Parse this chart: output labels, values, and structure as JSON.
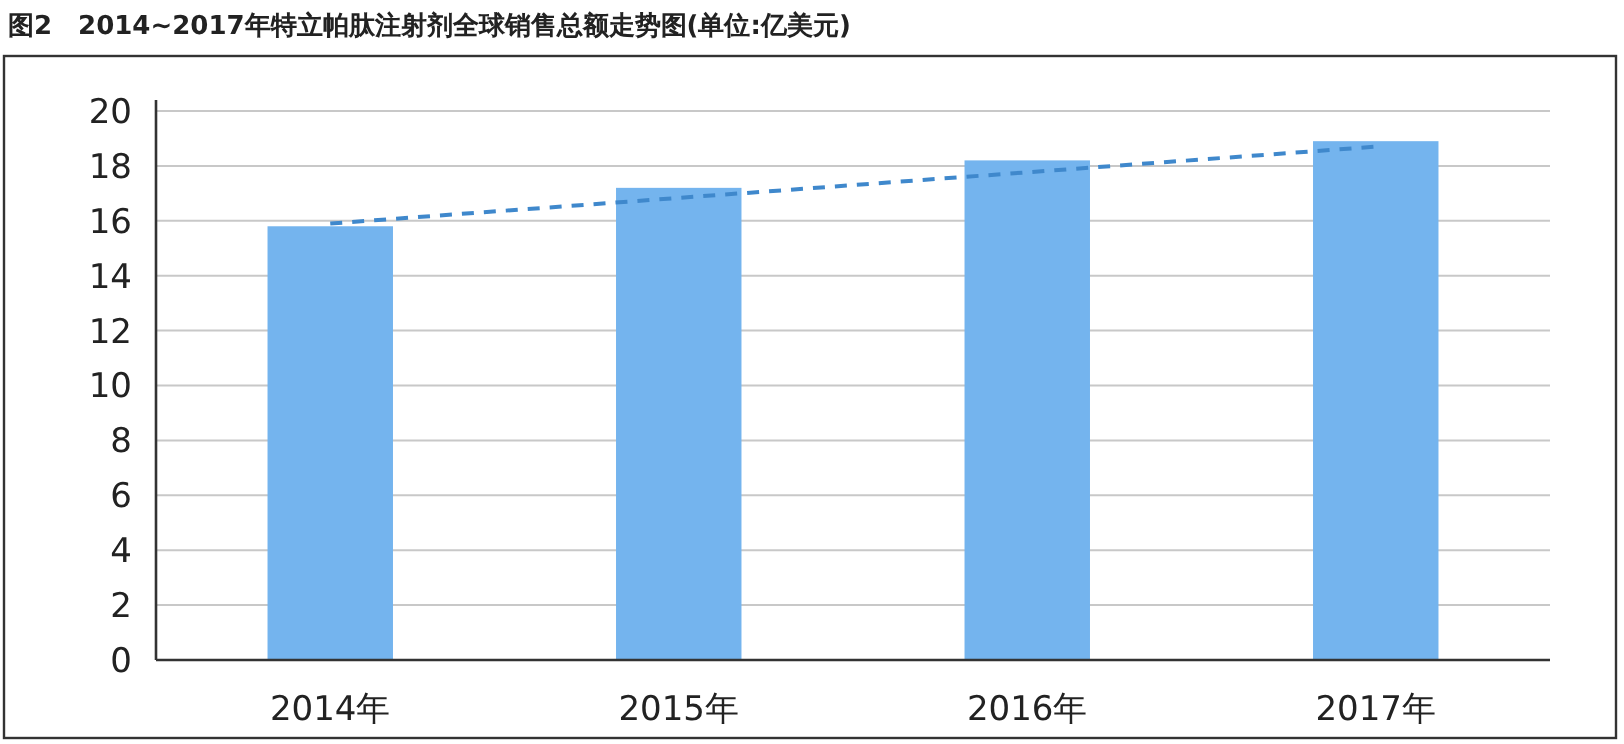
{
  "chart_data": {
    "type": "bar",
    "title": "图2　2014~2017年特立帕肽注射剂全球销售总额走势图(单位:亿美元)",
    "categories": [
      "2014年",
      "2015年",
      "2016年",
      "2017年"
    ],
    "series": [
      {
        "values": [
          15.8,
          17.2,
          18.2,
          18.9
        ],
        "color": "#74b4ee"
      },
      {
        "type": "line",
        "x": [
          "2014年",
          "2017年"
        ],
        "values": [
          15.9,
          18.7
        ],
        "color": "#3f88cc",
        "line_style": "dashed"
      }
    ],
    "ylim": [
      0,
      20.4
    ],
    "yticks": [
      0,
      2,
      4,
      6,
      8,
      10,
      12,
      14,
      16,
      18,
      20
    ],
    "grid": "y"
  }
}
